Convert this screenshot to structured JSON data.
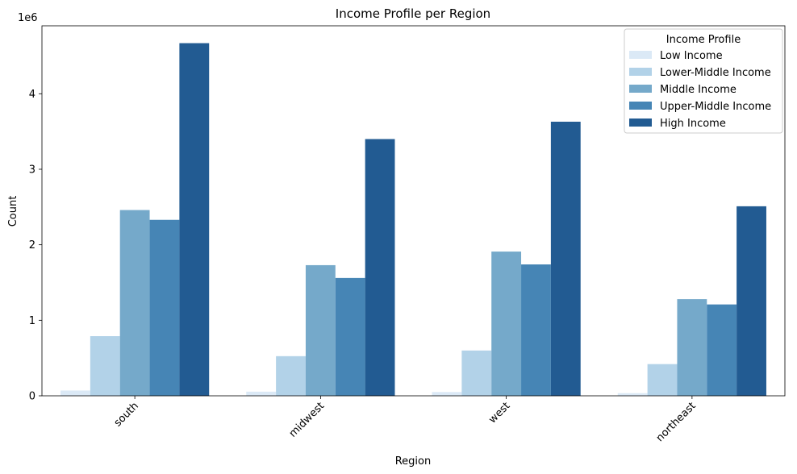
{
  "chart_data": {
    "type": "bar",
    "title": "Income Profile per Region",
    "xlabel": "Region",
    "ylabel": "Count",
    "y_offset_text": "1e6",
    "ylim": [
      0,
      4900000
    ],
    "yticks": [
      0,
      1,
      2,
      3,
      4
    ],
    "categories": [
      "south",
      "midwest",
      "west",
      "northeast"
    ],
    "legend": {
      "title": "Income Profile",
      "placement": "top-right"
    },
    "grid": false,
    "series": [
      {
        "name": "Low Income",
        "color": "#dbe9f6",
        "values": [
          70000,
          55000,
          50000,
          35000
        ]
      },
      {
        "name": "Lower-Middle Income",
        "color": "#b2d2e8",
        "values": [
          790000,
          525000,
          600000,
          420000
        ]
      },
      {
        "name": "Middle Income",
        "color": "#75a9ca",
        "values": [
          2460000,
          1730000,
          1910000,
          1280000
        ]
      },
      {
        "name": "Upper-Middle Income",
        "color": "#4685b5",
        "values": [
          2330000,
          1560000,
          1740000,
          1210000
        ]
      },
      {
        "name": "High Income",
        "color": "#225b92",
        "values": [
          4670000,
          3400000,
          3630000,
          2510000
        ]
      }
    ]
  }
}
